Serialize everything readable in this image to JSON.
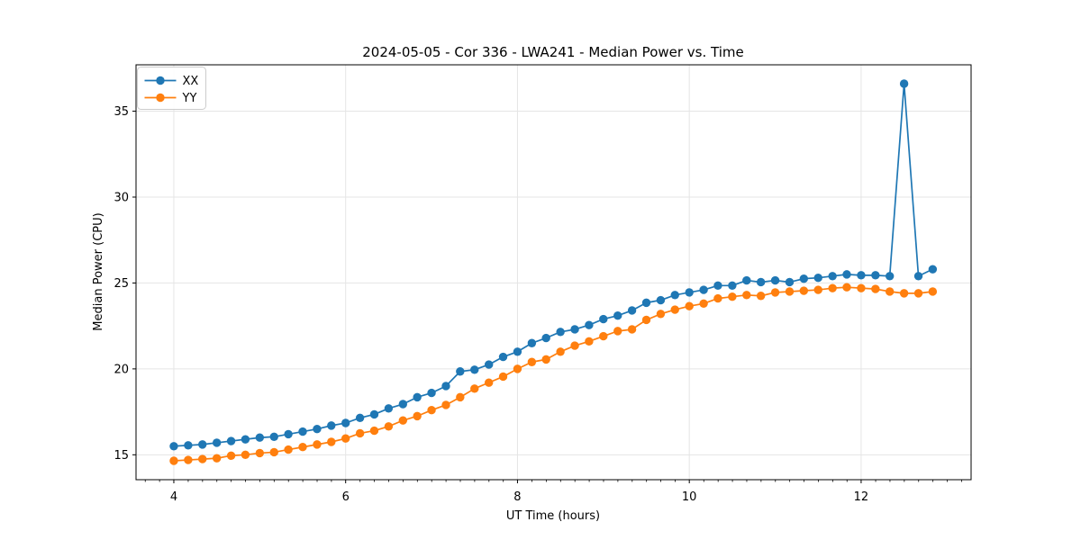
{
  "chart_data": {
    "type": "line",
    "title": "2024-05-05 - Cor 336 - LWA241 - Median Power vs. Time",
    "xlabel": "UT Time (hours)",
    "ylabel": "Median Power (CPU)",
    "xlim": [
      3.56,
      13.28
    ],
    "ylim": [
      13.55,
      37.7
    ],
    "xticks": [
      4,
      6,
      8,
      10,
      12
    ],
    "yticks": [
      15,
      20,
      25,
      30,
      35
    ],
    "x_minor_tick_step": 0.1667,
    "grid": true,
    "grid_color": "#e5e5e5",
    "legend": {
      "position": "upper-left",
      "entries": [
        "XX",
        "YY"
      ]
    },
    "x": [
      4.0,
      4.167,
      4.333,
      4.5,
      4.667,
      4.833,
      5.0,
      5.167,
      5.333,
      5.5,
      5.667,
      5.833,
      6.0,
      6.167,
      6.333,
      6.5,
      6.667,
      6.833,
      7.0,
      7.167,
      7.333,
      7.5,
      7.667,
      7.833,
      8.0,
      8.167,
      8.333,
      8.5,
      8.667,
      8.833,
      9.0,
      9.167,
      9.333,
      9.5,
      9.667,
      9.833,
      10.0,
      10.167,
      10.333,
      10.5,
      10.667,
      10.833,
      11.0,
      11.167,
      11.333,
      11.5,
      11.667,
      11.833,
      12.0,
      12.167,
      12.333,
      12.5,
      12.667,
      12.833
    ],
    "series": [
      {
        "name": "XX",
        "color": "#1f77b4",
        "marker": "circle",
        "values": [
          15.5,
          15.55,
          15.6,
          15.7,
          15.8,
          15.9,
          16.0,
          16.05,
          16.2,
          16.35,
          16.5,
          16.7,
          16.85,
          17.15,
          17.35,
          17.7,
          17.95,
          18.35,
          18.6,
          19.0,
          19.85,
          19.95,
          20.25,
          20.7,
          21.0,
          21.5,
          21.8,
          22.15,
          22.3,
          22.55,
          22.9,
          23.1,
          23.4,
          23.85,
          24.0,
          24.3,
          24.45,
          24.6,
          24.85,
          24.85,
          25.15,
          25.05,
          25.15,
          25.05,
          25.25,
          25.3,
          25.4,
          25.5,
          25.45,
          25.45,
          25.4,
          36.6,
          25.4,
          25.8
        ]
      },
      {
        "name": "YY",
        "color": "#ff7f0e",
        "marker": "circle",
        "values": [
          14.65,
          14.7,
          14.75,
          14.8,
          14.95,
          15.0,
          15.1,
          15.15,
          15.3,
          15.45,
          15.6,
          15.75,
          15.95,
          16.25,
          16.4,
          16.65,
          17.0,
          17.25,
          17.6,
          17.9,
          18.35,
          18.85,
          19.2,
          19.55,
          20.0,
          20.4,
          20.55,
          21.0,
          21.35,
          21.6,
          21.9,
          22.2,
          22.3,
          22.85,
          23.2,
          23.45,
          23.65,
          23.8,
          24.1,
          24.2,
          24.3,
          24.25,
          24.45,
          24.5,
          24.55,
          24.6,
          24.7,
          24.75,
          24.7,
          24.65,
          24.5,
          24.4,
          24.4,
          24.5
        ]
      }
    ]
  }
}
